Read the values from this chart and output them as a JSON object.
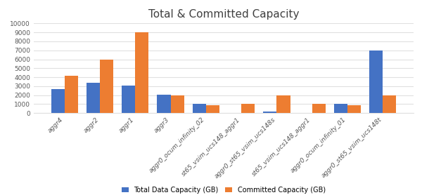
{
  "title": "Total & Committed Capacity",
  "categories": [
    "aggr4",
    "aggr2",
    "aggr1",
    "aggr3",
    "aggr0_ocum_infinity_02",
    "st65_vsim_ucs148_aggr1",
    "aggr0_st65_vsim_ucs148s",
    "st65_vsim_ucs148_aggr1",
    "aggr0_ocum_infinity_01",
    "aggr0_st65_vsim_ucs148t"
  ],
  "total_data": [
    2700,
    3350,
    3050,
    2050,
    1000,
    0,
    200,
    0,
    1000,
    7000
  ],
  "committed_data": [
    4200,
    6000,
    9050,
    2000,
    900,
    1000,
    2000,
    1000,
    900,
    2000
  ],
  "bar_color_total": "#4472c4",
  "bar_color_committed": "#ed7d31",
  "legend_labels": [
    "Total Data Capacity (GB)",
    "Committed Capacity (GB)"
  ],
  "ylim": [
    0,
    10000
  ],
  "yticks": [
    0,
    1000,
    2000,
    3000,
    4000,
    5000,
    6000,
    7000,
    8000,
    9000,
    10000
  ],
  "title_fontsize": 11,
  "tick_fontsize": 6.5,
  "background_color": "#ffffff",
  "grid_color": "#e0e0e0"
}
